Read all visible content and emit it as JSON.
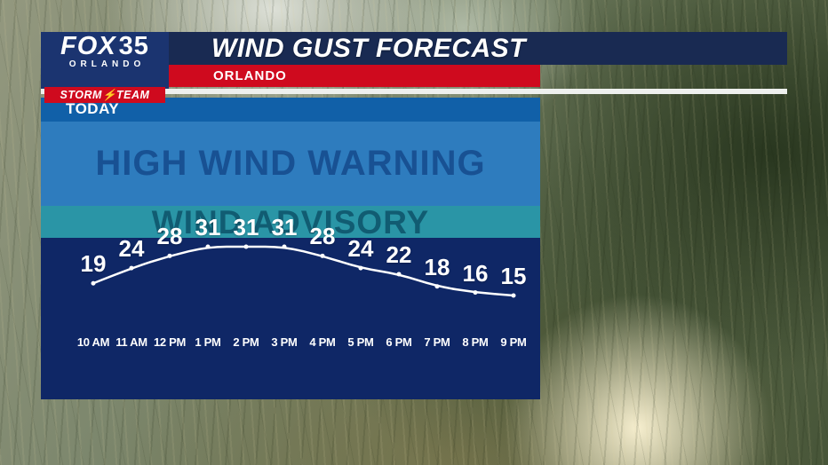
{
  "header": {
    "logo": {
      "brand": "FOX",
      "number": "35",
      "city": "ORLANDO",
      "team": "STORM⚡TEAM"
    },
    "title": "WIND GUST FORECAST",
    "location": "ORLANDO"
  },
  "chart_data": {
    "type": "line",
    "title": "WIND GUST FORECAST",
    "location": "ORLANDO",
    "day": "TODAY",
    "categories": [
      "10 AM",
      "11 AM",
      "12 PM",
      "1 PM",
      "2 PM",
      "3 PM",
      "4 PM",
      "5 PM",
      "6 PM",
      "7 PM",
      "8 PM",
      "9 PM"
    ],
    "values": [
      19,
      24,
      28,
      31,
      31,
      31,
      28,
      24,
      22,
      18,
      16,
      15
    ],
    "ylim": [
      15,
      31
    ],
    "line_color": "#ffffff",
    "grid": false,
    "legend": false,
    "bands": [
      {
        "label": "HIGH WIND WARNING",
        "color": "#2e7cbe",
        "text_color": "#144a8c"
      },
      {
        "label": "WIND ADVISORY",
        "color": "#2a95a6",
        "text_color": "#0d5268"
      }
    ]
  },
  "colors": {
    "title_bar_navy": "#192a52",
    "logo_navy": "#1b3470",
    "accent_red": "#cf0a1e",
    "panel_navy": "#0f2766",
    "today_band_blue": "#1160a8",
    "divider_white": "#eef0ee"
  }
}
